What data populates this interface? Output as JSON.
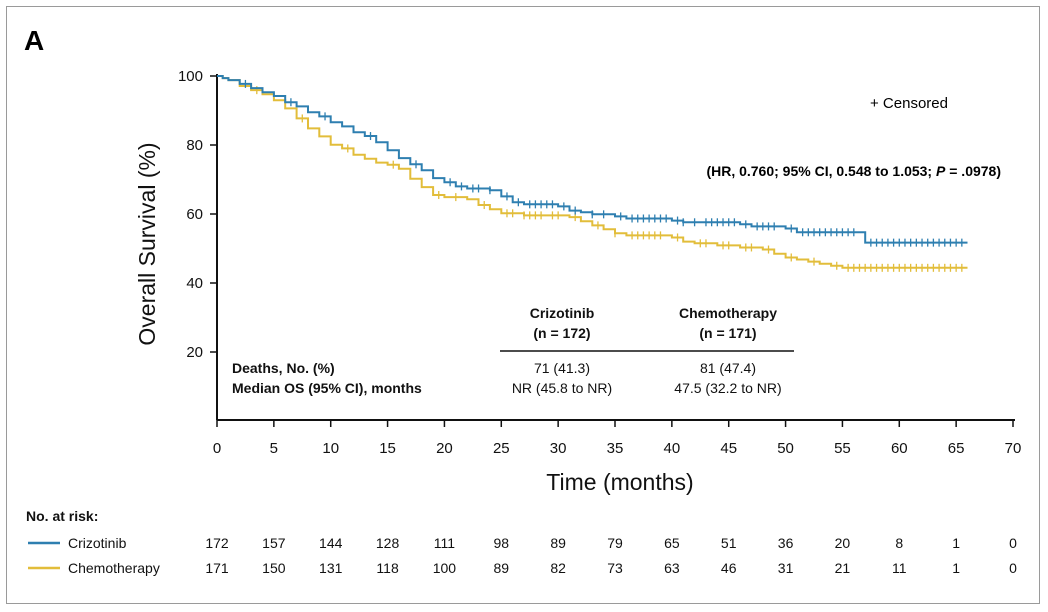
{
  "panel_label": "A",
  "censored_label": "+ Censored",
  "hr_text": {
    "prefix": "(HR, 0.760; 95% CI, 0.548 to 1.053; ",
    "p_label": "P",
    "suffix": " = .0978)"
  },
  "colors": {
    "crizotinib": "#2e7fb0",
    "chemotherapy": "#e2bd3a",
    "axis": "#111111"
  },
  "summary_table": {
    "col1_name": "Crizotinib",
    "col1_n": "(n = 172)",
    "col2_name": "Chemotherapy",
    "col2_n": "(n = 171)",
    "row1_label": "Deaths, No. (%)",
    "row1_col1": "71 (41.3)",
    "row1_col2": "81 (47.4)",
    "row2_label": "Median OS (95% CI), months",
    "row2_col1": "NR (45.8 to NR)",
    "row2_col2": "47.5 (32.2 to NR)"
  },
  "risk_table": {
    "title": "No. at risk:",
    "rows": [
      {
        "name": "Crizotinib",
        "counts": [
          "172",
          "157",
          "144",
          "128",
          "111",
          "98",
          "89",
          "79",
          "65",
          "51",
          "36",
          "20",
          "8",
          "1",
          "0"
        ]
      },
      {
        "name": "Chemotherapy",
        "counts": [
          "171",
          "150",
          "131",
          "118",
          "100",
          "89",
          "82",
          "73",
          "63",
          "46",
          "31",
          "21",
          "11",
          "1",
          "0"
        ]
      }
    ]
  },
  "chart_data": {
    "type": "line",
    "title": "",
    "xlabel": "Time (months)",
    "ylabel": "Overall Survival (%)",
    "xlim": [
      0,
      70
    ],
    "ylim": [
      0,
      100
    ],
    "xticks": [
      0,
      5,
      10,
      15,
      20,
      25,
      30,
      35,
      40,
      45,
      50,
      55,
      60,
      65,
      70
    ],
    "yticks": [
      20,
      40,
      60,
      80,
      100
    ],
    "series": [
      {
        "name": "Crizotinib",
        "color": "#2e7fb0",
        "points": [
          [
            0,
            100
          ],
          [
            0.5,
            99.4
          ],
          [
            1,
            98.8
          ],
          [
            2,
            97.7
          ],
          [
            3,
            96.5
          ],
          [
            4,
            95.3
          ],
          [
            5,
            94.2
          ],
          [
            6,
            92.4
          ],
          [
            7,
            91.2
          ],
          [
            8,
            89.5
          ],
          [
            9,
            88.3
          ],
          [
            10,
            86.6
          ],
          [
            11,
            85.4
          ],
          [
            12,
            83.7
          ],
          [
            13,
            82.6
          ],
          [
            14,
            80.8
          ],
          [
            15,
            78.5
          ],
          [
            16,
            76.2
          ],
          [
            17,
            74.4
          ],
          [
            18,
            72.7
          ],
          [
            19,
            70.4
          ],
          [
            20,
            69.2
          ],
          [
            21,
            68.0
          ],
          [
            22,
            67.4
          ],
          [
            24,
            66.9
          ],
          [
            25,
            65.1
          ],
          [
            26,
            63.4
          ],
          [
            27,
            62.8
          ],
          [
            30,
            62.2
          ],
          [
            31,
            61.0
          ],
          [
            32,
            60.5
          ],
          [
            33,
            59.9
          ],
          [
            35,
            59.3
          ],
          [
            36,
            58.7
          ],
          [
            40,
            58.1
          ],
          [
            41,
            57.6
          ],
          [
            46,
            57.0
          ],
          [
            47,
            56.4
          ],
          [
            50,
            55.8
          ],
          [
            51,
            54.7
          ],
          [
            56,
            54.7
          ],
          [
            57,
            51.7
          ],
          [
            66,
            51.7
          ]
        ],
        "censor_times": [
          2.5,
          6.5,
          9.5,
          13.5,
          17.5,
          20.5,
          21.5,
          22.5,
          23,
          24,
          25.5,
          26.5,
          27.5,
          28,
          28.5,
          29,
          29.5,
          30.5,
          31.5,
          33,
          34,
          35.5,
          36.5,
          37,
          37.5,
          38,
          38.5,
          39,
          39.5,
          40.5,
          41,
          42,
          43,
          43.5,
          44,
          44.5,
          45,
          45.5,
          46.5,
          47.5,
          48,
          48.5,
          49,
          50.5,
          51.5,
          52,
          52.5,
          53,
          53.5,
          54,
          54.5,
          55,
          55.5,
          56,
          57.5,
          58,
          58.5,
          59,
          59.5,
          60,
          60.5,
          61,
          61.5,
          62,
          62.5,
          63,
          63.5,
          64,
          64.5,
          65,
          65.5
        ]
      },
      {
        "name": "Chemotherapy",
        "color": "#e2bd3a",
        "points": [
          [
            0,
            100
          ],
          [
            0.5,
            99.4
          ],
          [
            1,
            98.8
          ],
          [
            2,
            97.1
          ],
          [
            3,
            95.9
          ],
          [
            4,
            94.7
          ],
          [
            5,
            93.0
          ],
          [
            6,
            90.6
          ],
          [
            7,
            87.7
          ],
          [
            8,
            84.8
          ],
          [
            9,
            82.5
          ],
          [
            10,
            80.1
          ],
          [
            11,
            79.0
          ],
          [
            12,
            77.2
          ],
          [
            13,
            76.0
          ],
          [
            14,
            74.9
          ],
          [
            15,
            74.3
          ],
          [
            16,
            73.1
          ],
          [
            17,
            70.2
          ],
          [
            18,
            67.8
          ],
          [
            19,
            65.5
          ],
          [
            20,
            64.9
          ],
          [
            22,
            64.3
          ],
          [
            23,
            62.6
          ],
          [
            24,
            61.4
          ],
          [
            25,
            60.2
          ],
          [
            27,
            59.6
          ],
          [
            31,
            59.1
          ],
          [
            32,
            57.9
          ],
          [
            33,
            56.7
          ],
          [
            34,
            55.6
          ],
          [
            35,
            54.4
          ],
          [
            36,
            53.8
          ],
          [
            40,
            53.2
          ],
          [
            41,
            52.0
          ],
          [
            42,
            51.5
          ],
          [
            44,
            50.9
          ],
          [
            46,
            50.3
          ],
          [
            48,
            49.7
          ],
          [
            49,
            48.5
          ],
          [
            50,
            47.4
          ],
          [
            51,
            46.8
          ],
          [
            52,
            46.2
          ],
          [
            53,
            45.6
          ],
          [
            54,
            45.0
          ],
          [
            55,
            44.4
          ],
          [
            66,
            44.4
          ]
        ],
        "censor_times": [
          3.5,
          7.5,
          11.5,
          15.5,
          19.5,
          21,
          23.5,
          25.5,
          26,
          27,
          27.5,
          28,
          28.5,
          29.5,
          30,
          31.5,
          33.5,
          35,
          36.5,
          37,
          37.5,
          38,
          38.5,
          39,
          40.5,
          42.5,
          43,
          44.5,
          45,
          46.5,
          47,
          48.5,
          50.5,
          52.5,
          54.5,
          55.5,
          56,
          56.5,
          57,
          57.5,
          58,
          58.5,
          59,
          59.5,
          60,
          60.5,
          61,
          61.5,
          62,
          62.5,
          63,
          63.5,
          64,
          64.5,
          65,
          65.5
        ]
      }
    ]
  }
}
